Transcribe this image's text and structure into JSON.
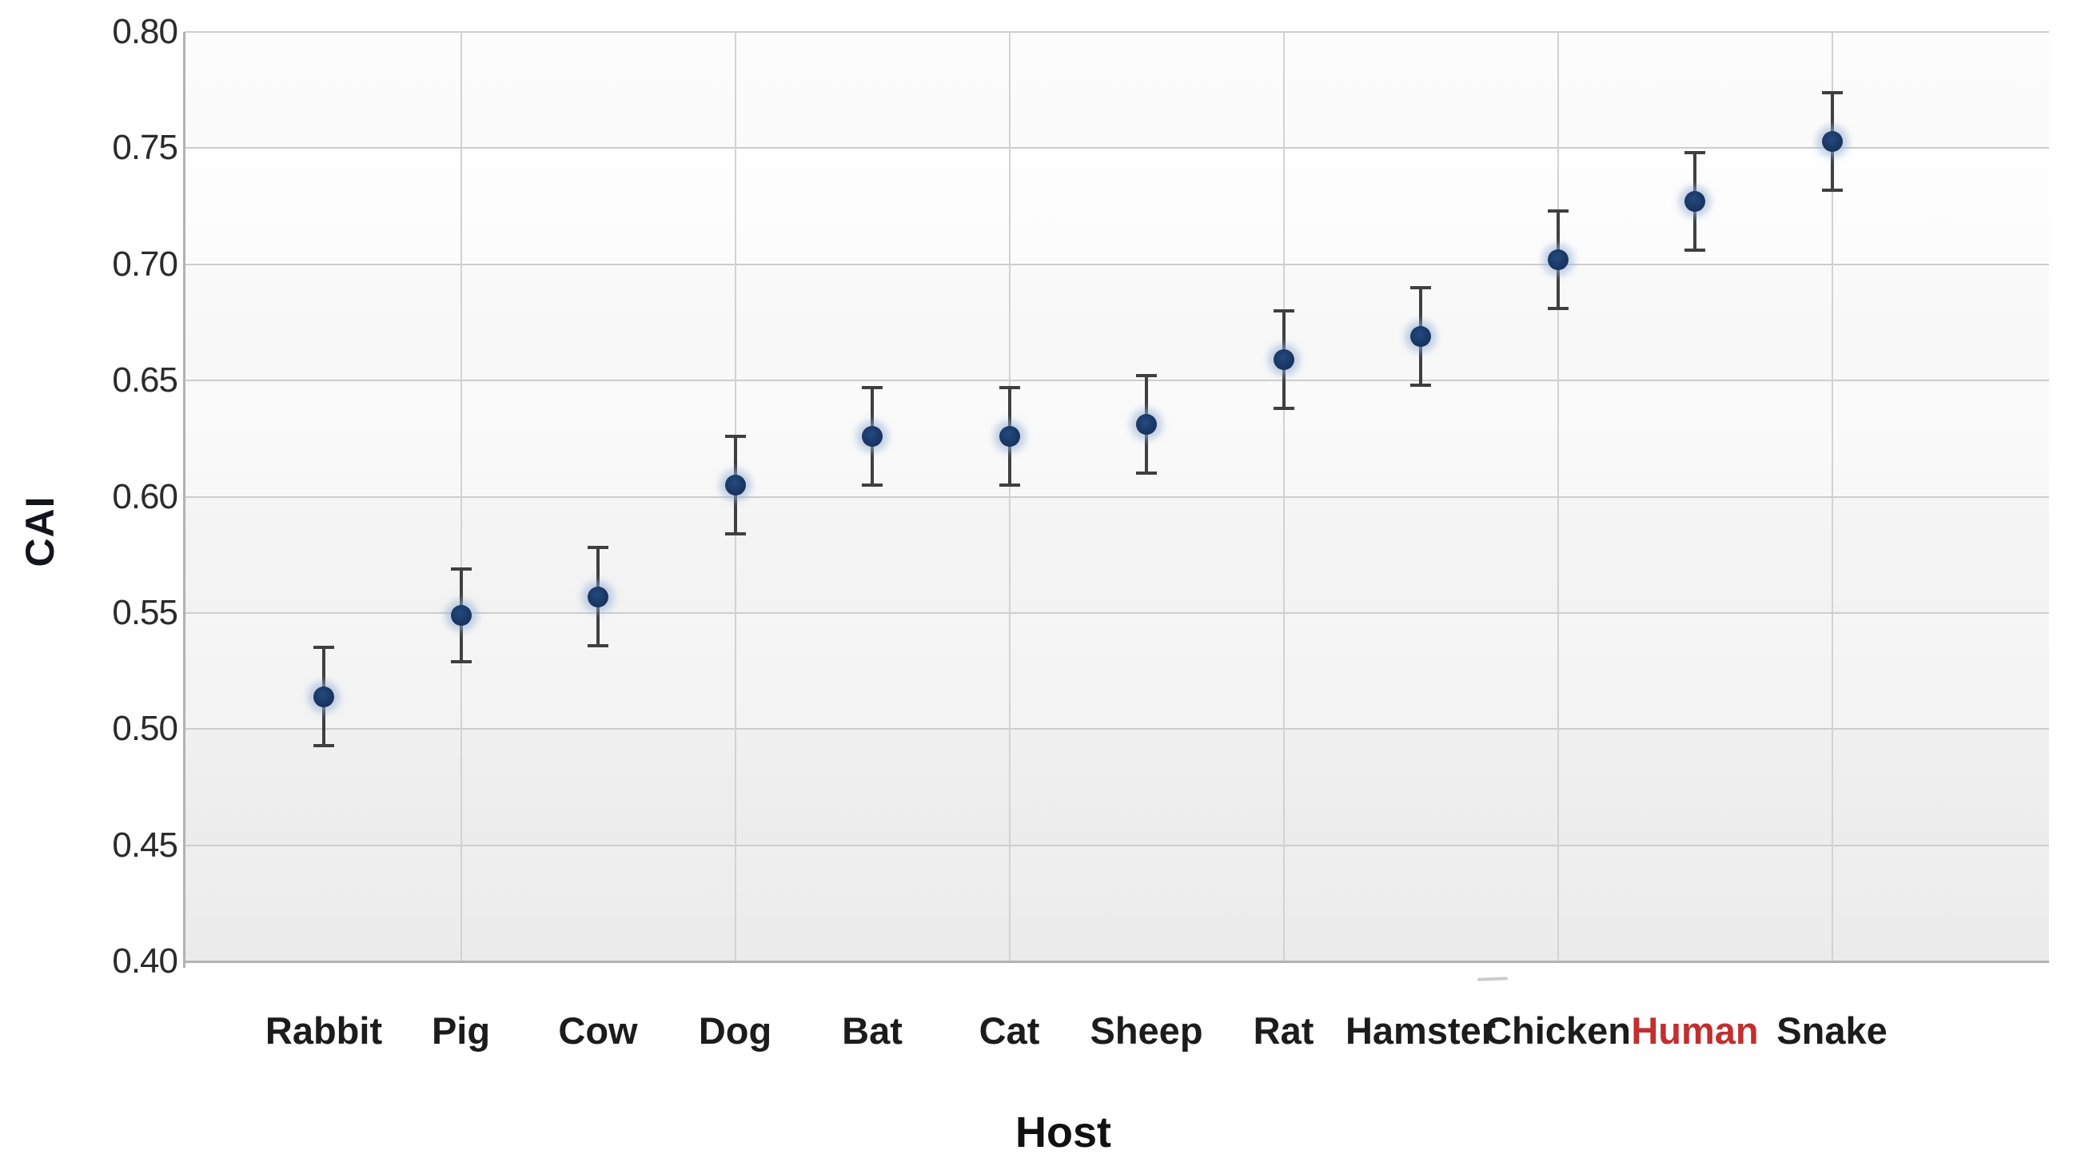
{
  "chart_data": {
    "type": "scatter",
    "title": "",
    "xlabel": "Host",
    "ylabel": "CAI",
    "ylim": [
      0.4,
      0.8
    ],
    "ytick_step": 0.05,
    "ytick_labels": [
      "0.80",
      "0.75",
      "0.70",
      "0.65",
      "0.60",
      "0.55",
      "0.50",
      "0.45",
      "0.40"
    ],
    "categories": [
      "Rabbit",
      "Pig",
      "Cow",
      "Dog",
      "Bat",
      "Cat",
      "Sheep",
      "Rat",
      "Hamster",
      "Chicken",
      "Human",
      "Snake"
    ],
    "series": [
      {
        "name": "CAI",
        "values": [
          0.514,
          0.549,
          0.557,
          0.605,
          0.626,
          0.626,
          0.631,
          0.659,
          0.669,
          0.702,
          0.727,
          0.753
        ],
        "errors": [
          0.021,
          0.02,
          0.021,
          0.021,
          0.021,
          0.021,
          0.021,
          0.021,
          0.021,
          0.021,
          0.021,
          0.021
        ]
      }
    ],
    "highlight_category": "Human",
    "legend_position": "none",
    "grid": {
      "horizontal": "at every 0.05 tick",
      "vertical": "at even categories (Pig, Dog, Cat, Rat, Chicken, Snake)"
    },
    "colors": {
      "marker": "#1a3763",
      "marker_halo": "#94afd6",
      "error_bar": "#3f3f3f",
      "gridline": "#cdcdcd",
      "axis_line": "#b2b2b2",
      "tick_label": "#2b2b2b",
      "category_label": "#1c1c1c",
      "highlight_label": "#c12f2f",
      "plot_bg_top": "#ffffff",
      "plot_bg_bottom": "#ebebeb"
    }
  }
}
